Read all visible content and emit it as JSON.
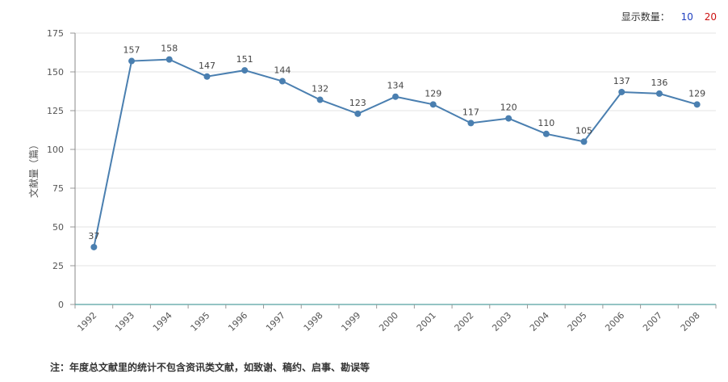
{
  "controls": {
    "label": "显示数量：",
    "options": [
      {
        "label": "10",
        "color": "#1f3fbf"
      },
      {
        "label": "20",
        "color": "#cc1111"
      }
    ]
  },
  "note": "注：年度总文献里的统计不包含资讯类文献，如致谢、稿约、启事、勘误等",
  "chart_data": {
    "type": "line",
    "ylabel": "文献量（篇）",
    "ylim": [
      0,
      175
    ],
    "yticks": [
      0,
      25,
      50,
      75,
      100,
      125,
      150,
      175
    ],
    "grid": true,
    "line_color": "#4a7fb0",
    "categories": [
      "1992",
      "1993",
      "1994",
      "1995",
      "1996",
      "1997",
      "1998",
      "1999",
      "2000",
      "2001",
      "2002",
      "2003",
      "2004",
      "2005",
      "2006",
      "2007",
      "2008"
    ],
    "values": [
      37,
      157,
      158,
      147,
      151,
      144,
      132,
      123,
      134,
      129,
      117,
      120,
      110,
      105,
      137,
      136,
      129
    ]
  }
}
